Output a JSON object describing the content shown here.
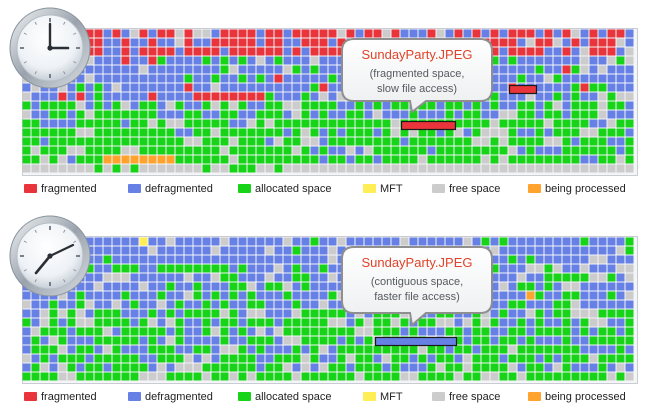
{
  "legend": [
    {
      "label": "fragmented",
      "color": "#e8343a",
      "key": "fragmented"
    },
    {
      "label": "defragmented",
      "color": "#6680e6",
      "key": "defragmented"
    },
    {
      "label": "allocated space",
      "color": "#18d418",
      "key": "allocated"
    },
    {
      "label": "MFT",
      "color": "#ffee55",
      "key": "mft"
    },
    {
      "label": "free space",
      "color": "#cccccc",
      "key": "free"
    },
    {
      "label": "being processed",
      "color": "#ffa22e",
      "key": "processing"
    }
  ],
  "panels": [
    {
      "callout": {
        "title": "SundayParty.JPEG",
        "line1": "(fragmented space,",
        "line2": "slow file access)"
      },
      "state": "fragmented"
    },
    {
      "callout": {
        "title": "SundayParty.JPEG",
        "line1": "(contiguous space,",
        "line2": "faster file access)"
      },
      "state": "defragmented"
    }
  ],
  "icons": [
    "clock-icon"
  ]
}
